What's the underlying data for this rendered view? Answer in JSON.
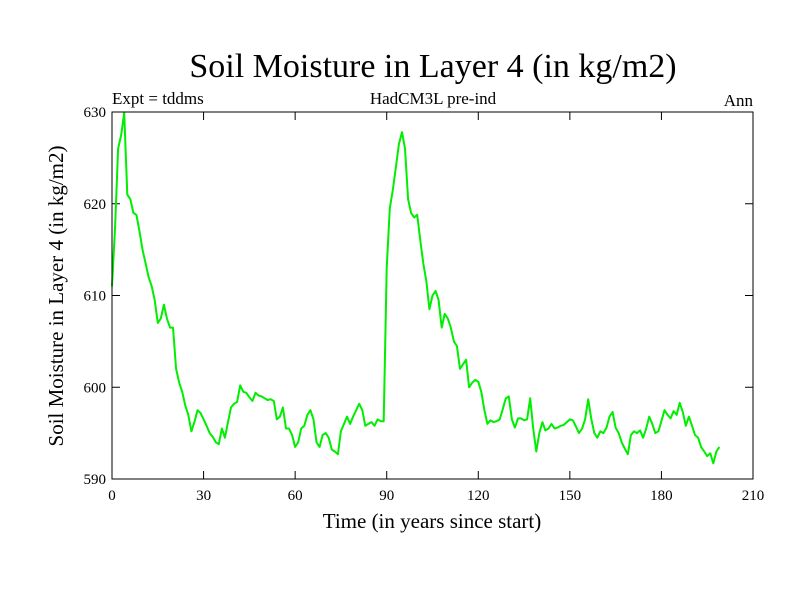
{
  "header": {
    "left": "Expt = tddms",
    "center": "HadCM3L pre-ind",
    "right": "Ann"
  },
  "chart_data": {
    "type": "line",
    "title": "Soil Moisture in Layer 4 (in kg/m2)",
    "xlabel": "Time (in years since start)",
    "ylabel": "Soil Moisture in Layer 4 (in kg/m2)",
    "xlim": [
      0,
      210
    ],
    "ylim": [
      590,
      630
    ],
    "xticks": [
      0,
      30,
      60,
      90,
      120,
      150,
      180,
      210
    ],
    "yticks": [
      590,
      600,
      610,
      620,
      630
    ],
    "grid": false,
    "line_color": "#00ee00",
    "series": [
      {
        "x": [
          0,
          1,
          2,
          3,
          4,
          5,
          6,
          7,
          8,
          9,
          10,
          11,
          12,
          13,
          14,
          15,
          16,
          17,
          18,
          19,
          20,
          21,
          22,
          23,
          24,
          25,
          26,
          27,
          28,
          29,
          30,
          31,
          32,
          33,
          34,
          35,
          36,
          37,
          38,
          39,
          40,
          41,
          42,
          43,
          44,
          45,
          46,
          47,
          48,
          49,
          50,
          51,
          52,
          53,
          54,
          55,
          56,
          57,
          58,
          59,
          60,
          61,
          62,
          63,
          64,
          65,
          66,
          67,
          68,
          69,
          70,
          71,
          72,
          73,
          74,
          75,
          76,
          77,
          78,
          79,
          80,
          81,
          82,
          83,
          84,
          85,
          86,
          87,
          88,
          89,
          90,
          91,
          92,
          93,
          94,
          95,
          96,
          97,
          98,
          99,
          100,
          101,
          102,
          103,
          104,
          105,
          106,
          107,
          108,
          109,
          110,
          111,
          112,
          113,
          114,
          115,
          116,
          117,
          118,
          119,
          120,
          121,
          122,
          123,
          124,
          125,
          126,
          127,
          128,
          129,
          130,
          131,
          132,
          133,
          134,
          135,
          136,
          137,
          138,
          139,
          140,
          141,
          142,
          143,
          144,
          145,
          146,
          147,
          148,
          149,
          150,
          151,
          152,
          153,
          154,
          155,
          156,
          157,
          158,
          159,
          160,
          161,
          162,
          163,
          164,
          165,
          166,
          167,
          168,
          169,
          170,
          171,
          172,
          173,
          174,
          175,
          176,
          177,
          178,
          179,
          180,
          181,
          182,
          183,
          184,
          185,
          186,
          187,
          188,
          189,
          190,
          191,
          192,
          193,
          194,
          195,
          196,
          197,
          198,
          199
        ],
        "values": [
          611.0,
          617.5,
          626.0,
          627.5,
          629.9,
          621.0,
          620.5,
          619.0,
          618.8,
          617.0,
          615.0,
          613.5,
          612.0,
          611.0,
          609.5,
          607.0,
          607.5,
          609.0,
          607.5,
          606.5,
          606.5,
          602.0,
          600.5,
          599.5,
          598.0,
          597.0,
          595.2,
          596.2,
          597.5,
          597.2,
          596.5,
          595.8,
          595.0,
          594.6,
          594.0,
          593.8,
          595.5,
          594.5,
          596.2,
          597.8,
          598.2,
          598.4,
          600.2,
          599.5,
          599.4,
          598.9,
          598.5,
          599.4,
          599.1,
          599.0,
          598.8,
          598.6,
          598.7,
          598.5,
          596.5,
          596.8,
          597.8,
          595.5,
          595.5,
          594.8,
          593.5,
          594.0,
          595.5,
          595.8,
          597.0,
          597.5,
          596.5,
          594.0,
          593.5,
          594.8,
          595.0,
          594.5,
          593.2,
          593.0,
          592.7,
          595.2,
          596.0,
          596.8,
          596.0,
          596.8,
          597.5,
          598.2,
          597.5,
          595.8,
          596.0,
          596.2,
          595.8,
          596.5,
          596.3,
          596.3,
          613.0,
          619.5,
          621.5,
          624.0,
          626.5,
          627.8,
          626.0,
          620.5,
          619.0,
          618.5,
          618.8,
          616.0,
          613.5,
          611.5,
          608.5,
          610.0,
          610.5,
          609.5,
          606.5,
          608.0,
          607.5,
          606.5,
          605.0,
          604.5,
          602.0,
          602.5,
          603.0,
          600.0,
          600.5,
          600.8,
          600.6,
          599.5,
          597.5,
          596.0,
          596.4,
          596.2,
          596.3,
          596.5,
          597.6,
          598.8,
          599.0,
          596.5,
          595.6,
          596.6,
          596.6,
          596.4,
          596.5,
          598.8,
          595.5,
          593.0,
          595.0,
          596.2,
          595.3,
          595.5,
          596.0,
          595.5,
          595.6,
          595.8,
          595.9,
          596.2,
          596.5,
          596.4,
          595.7,
          595.0,
          595.5,
          596.5,
          598.7,
          596.6,
          595.0,
          594.5,
          595.2,
          595.0,
          595.6,
          596.8,
          597.3,
          595.6,
          595.0,
          594.0,
          593.3,
          592.7,
          594.8,
          595.2,
          595.0,
          595.3,
          594.5,
          595.5,
          596.8,
          596.0,
          595.0,
          595.2,
          596.3,
          597.5,
          597.0,
          596.6,
          597.4,
          597.0,
          598.3,
          597.3,
          595.8,
          596.8,
          595.8,
          594.8,
          594.5,
          593.5,
          593.0,
          592.5,
          592.8,
          591.7,
          593.0,
          593.5
        ]
      }
    ]
  }
}
